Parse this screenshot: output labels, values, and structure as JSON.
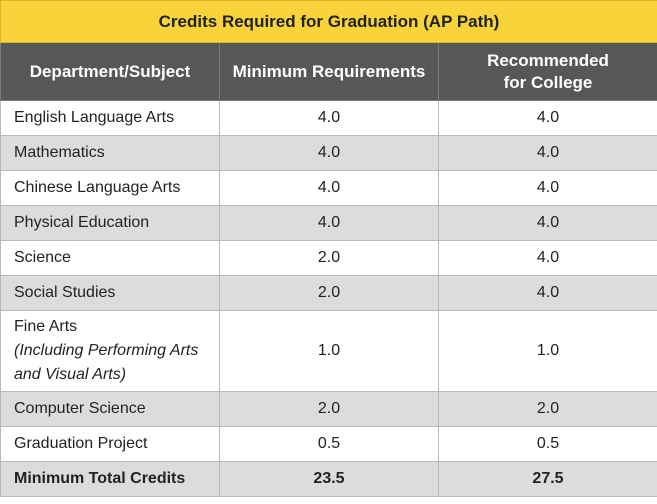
{
  "table": {
    "title": "Credits Required for Graduation (AP Path)",
    "headers": [
      "Department/Subject",
      "Minimum Requirements",
      "Recommended for College"
    ],
    "rows": [
      {
        "subject": "English Language Arts",
        "note": "",
        "minimum": "4.0",
        "recommended": "4.0"
      },
      {
        "subject": "Mathematics",
        "note": "",
        "minimum": "4.0",
        "recommended": "4.0"
      },
      {
        "subject": "Chinese Language Arts",
        "note": "",
        "minimum": "4.0",
        "recommended": "4.0"
      },
      {
        "subject": "Physical Education",
        "note": "",
        "minimum": "4.0",
        "recommended": "4.0"
      },
      {
        "subject": "Science",
        "note": "",
        "minimum": "2.0",
        "recommended": "4.0"
      },
      {
        "subject": "Social Studies",
        "note": "",
        "minimum": "2.0",
        "recommended": "4.0"
      },
      {
        "subject": "Fine Arts",
        "note": "(Including Performing Arts and Visual Arts)",
        "minimum": "1.0",
        "recommended": "1.0"
      },
      {
        "subject": "Computer Science",
        "note": "",
        "minimum": "2.0",
        "recommended": "2.0"
      },
      {
        "subject": "Graduation Project",
        "note": "",
        "minimum": "0.5",
        "recommended": "0.5"
      }
    ],
    "total": {
      "label": "Minimum Total Credits",
      "minimum": "23.5",
      "recommended": "27.5"
    }
  },
  "colors": {
    "title_bg": "#f9d33a",
    "header_bg": "#575757",
    "row_alt_bg": "#dcdcdc",
    "row_bg": "#ffffff"
  }
}
